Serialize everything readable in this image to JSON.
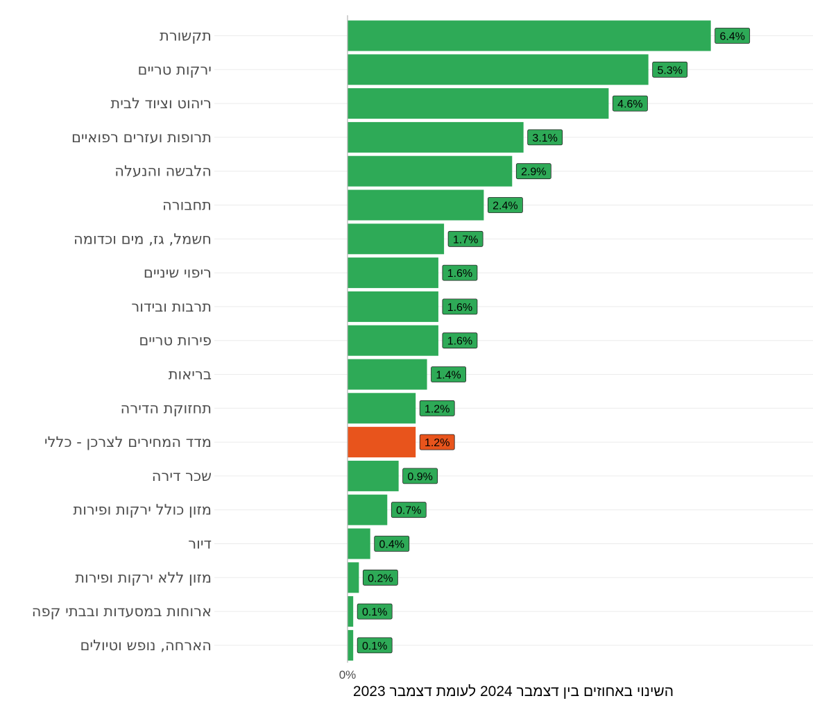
{
  "chart_data": {
    "type": "bar",
    "orientation": "horizontal",
    "xlabel": "השינוי באחוזים בין דצמבר 2024 לעומת דצמבר 2023",
    "x_tick_labels": [
      "0%"
    ],
    "xlim": [
      0,
      8.2
    ],
    "grid": "horizontal only",
    "legend": "none",
    "colors": {
      "default": "#2eaa57",
      "highlight": "#e8541c",
      "gridline": "#ebebeb",
      "axis": "#b3b3b3"
    },
    "categories": [
      "תקשורת",
      "ירקות טריים",
      "ריהוט וציוד לבית",
      "תרופות ועזרים רפואיים",
      "הלבשה והנעלה",
      "תחבורה",
      "חשמל, גז, מים וכדומה",
      "ריפוי שיניים",
      "תרבות ובידור",
      "פירות טריים",
      "בריאות",
      "תחזוקת הדירה",
      "מדד המחירים לצרכן - כללי",
      "שכר דירה",
      "מזון כולל ירקות ופירות",
      "דיור",
      "מזון ללא ירקות ופירות",
      "ארוחות במסעדות ובבתי קפה",
      "הארחה, נופש וטיולים"
    ],
    "values": [
      6.4,
      5.3,
      4.6,
      3.1,
      2.9,
      2.4,
      1.7,
      1.6,
      1.6,
      1.6,
      1.4,
      1.2,
      1.2,
      0.9,
      0.7,
      0.4,
      0.2,
      0.1,
      0.1
    ],
    "value_labels": [
      "6.4%",
      "5.3%",
      "4.6%",
      "3.1%",
      "2.9%",
      "2.4%",
      "1.7%",
      "1.6%",
      "1.6%",
      "1.6%",
      "1.4%",
      "1.2%",
      "1.2%",
      "0.9%",
      "0.7%",
      "0.4%",
      "0.2%",
      "0.1%",
      "0.1%"
    ],
    "bar_colors": [
      "green",
      "green",
      "green",
      "green",
      "green",
      "green",
      "green",
      "green",
      "green",
      "green",
      "green",
      "green",
      "orange",
      "green",
      "green",
      "green",
      "green",
      "green",
      "green"
    ]
  }
}
